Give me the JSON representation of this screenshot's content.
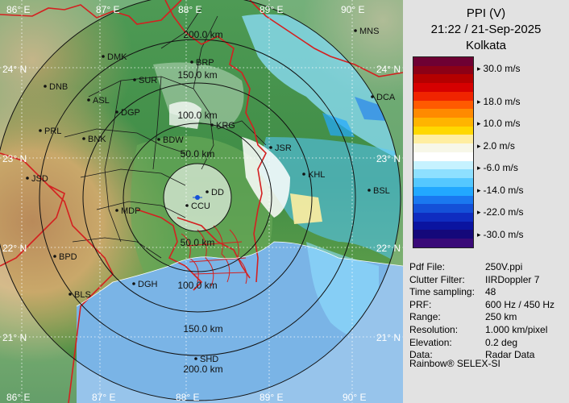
{
  "header": {
    "product": "PPI (V)",
    "datetime": "21:22 / 21-Sep-2025",
    "station": "Kolkata"
  },
  "legend": {
    "labels": [
      "30.0 m/s",
      "18.0 m/s",
      "10.0 m/s",
      "2.0 m/s",
      "-6.0 m/s",
      "-14.0 m/s",
      "-22.0 m/s",
      "-30.0 m/s"
    ],
    "colors": [
      "#6e0033",
      "#8c0016",
      "#b50000",
      "#d60000",
      "#f02400",
      "#ff5a00",
      "#ff8a00",
      "#ffb400",
      "#ffd800",
      "#ffeea0",
      "#f7f7e8",
      "#ffffff",
      "#c6f2ff",
      "#8ee0ff",
      "#55c8ff",
      "#22a8ff",
      "#1a78f0",
      "#1450d8",
      "#0f2cc0",
      "#0a14a0",
      "#14087a",
      "#3a0a78"
    ]
  },
  "info": [
    {
      "key": "Pdf File:",
      "value": "250V.ppi"
    },
    {
      "key": "Clutter Filter:",
      "value": "IIRDoppler 7"
    },
    {
      "key": "Time sampling:",
      "value": "48"
    },
    {
      "key": "PRF:",
      "value": "600 Hz / 450 Hz"
    },
    {
      "key": "Range:",
      "value": "250 km"
    },
    {
      "key": "Resolution:",
      "value": "1.000 km/pixel"
    },
    {
      "key": "Elevation:",
      "value": "0.2 deg"
    },
    {
      "key": "Data:",
      "value": "Radar Data"
    }
  ],
  "credit": "Rainbow® SELEX-SI",
  "map": {
    "lon_labels": [
      "86° E",
      "87° E",
      "88° E",
      "89° E",
      "90° E"
    ],
    "lat_labels": [
      "24° N",
      "23° N",
      "22° N",
      "21° N"
    ],
    "range_labels": [
      "50.0 km",
      "100.0 km",
      "150.0 km",
      "200.0 km"
    ],
    "range_labels_south": [
      "50.0 km",
      "100.0 km",
      "150.0 km",
      "200.0 km"
    ],
    "cities": [
      "MNS",
      "DMK",
      "BRP",
      "DNB",
      "SUR",
      "DCA",
      "ASL",
      "DGP",
      "KRG",
      "PRL",
      "BNK",
      "BDW",
      "JSR",
      "KHL",
      "JSD",
      "DD",
      "BSL",
      "MDP",
      "CCU",
      "BPD",
      "DGH",
      "BLS",
      "SHD"
    ]
  }
}
